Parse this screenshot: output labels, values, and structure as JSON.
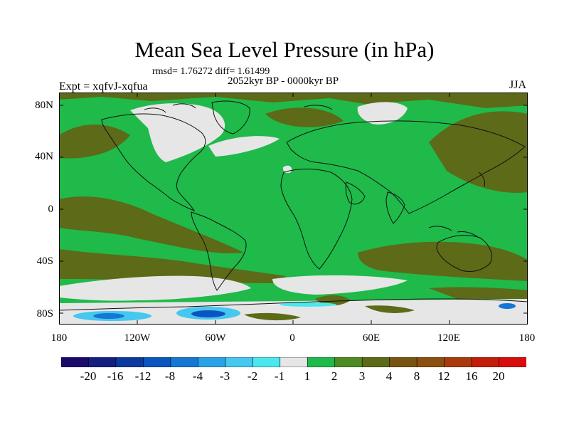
{
  "title": "Mean Sea Level Pressure (in hPa)",
  "stats": "rmsd= 1.76272 diff= 1.61499",
  "period": "2052kyr BP - 0000kyr BP",
  "experiment": "Expt = xqfvJ-xqfua",
  "season": "JJA",
  "axes": {
    "y_ticks": [
      "80N",
      "40N",
      "0",
      "40S",
      "80S"
    ],
    "x_ticks": [
      "180",
      "120W",
      "60W",
      "0",
      "60E",
      "120E",
      "180"
    ]
  },
  "colorbar": {
    "tick_labels": [
      "-20",
      "-16",
      "-12",
      "-8",
      "-4",
      "-3",
      "-2",
      "-1",
      "1",
      "2",
      "3",
      "4",
      "8",
      "12",
      "16",
      "20"
    ],
    "colors": [
      "#1a0a6b",
      "#14207f",
      "#0a3a9e",
      "#0b55bf",
      "#1577d4",
      "#2aa3e6",
      "#45c7f0",
      "#4ae8ee",
      "#e6e6e6",
      "#1fba4a",
      "#4e8b23",
      "#5d6a17",
      "#775412",
      "#8b4f10",
      "#a83a0e",
      "#c41c0a",
      "#d90c0c"
    ]
  }
}
